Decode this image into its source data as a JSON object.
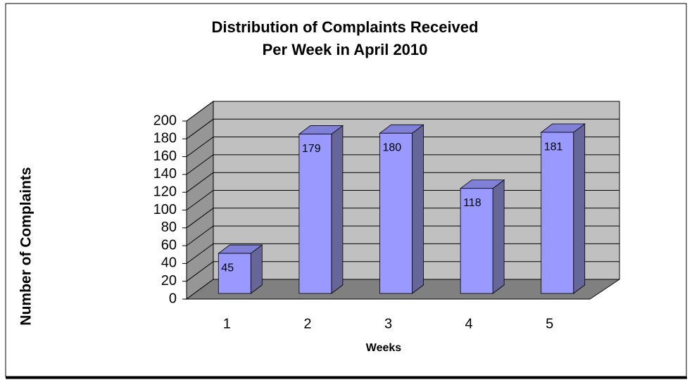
{
  "chart_data": {
    "type": "bar3d",
    "title": "Distribution of Complaints Received",
    "subtitle": "Per Week in April 2010",
    "x_label": "Weeks",
    "y_label": "Number of Complaints",
    "categories": [
      "1",
      "2",
      "3",
      "4",
      "5"
    ],
    "values": [
      45,
      179,
      180,
      118,
      181
    ],
    "color": "#9999ff",
    "ylim": [
      0,
      200
    ],
    "yticks": [
      0,
      20,
      40,
      60,
      80,
      100,
      120,
      140,
      160,
      180,
      200
    ],
    "grid": true
  }
}
